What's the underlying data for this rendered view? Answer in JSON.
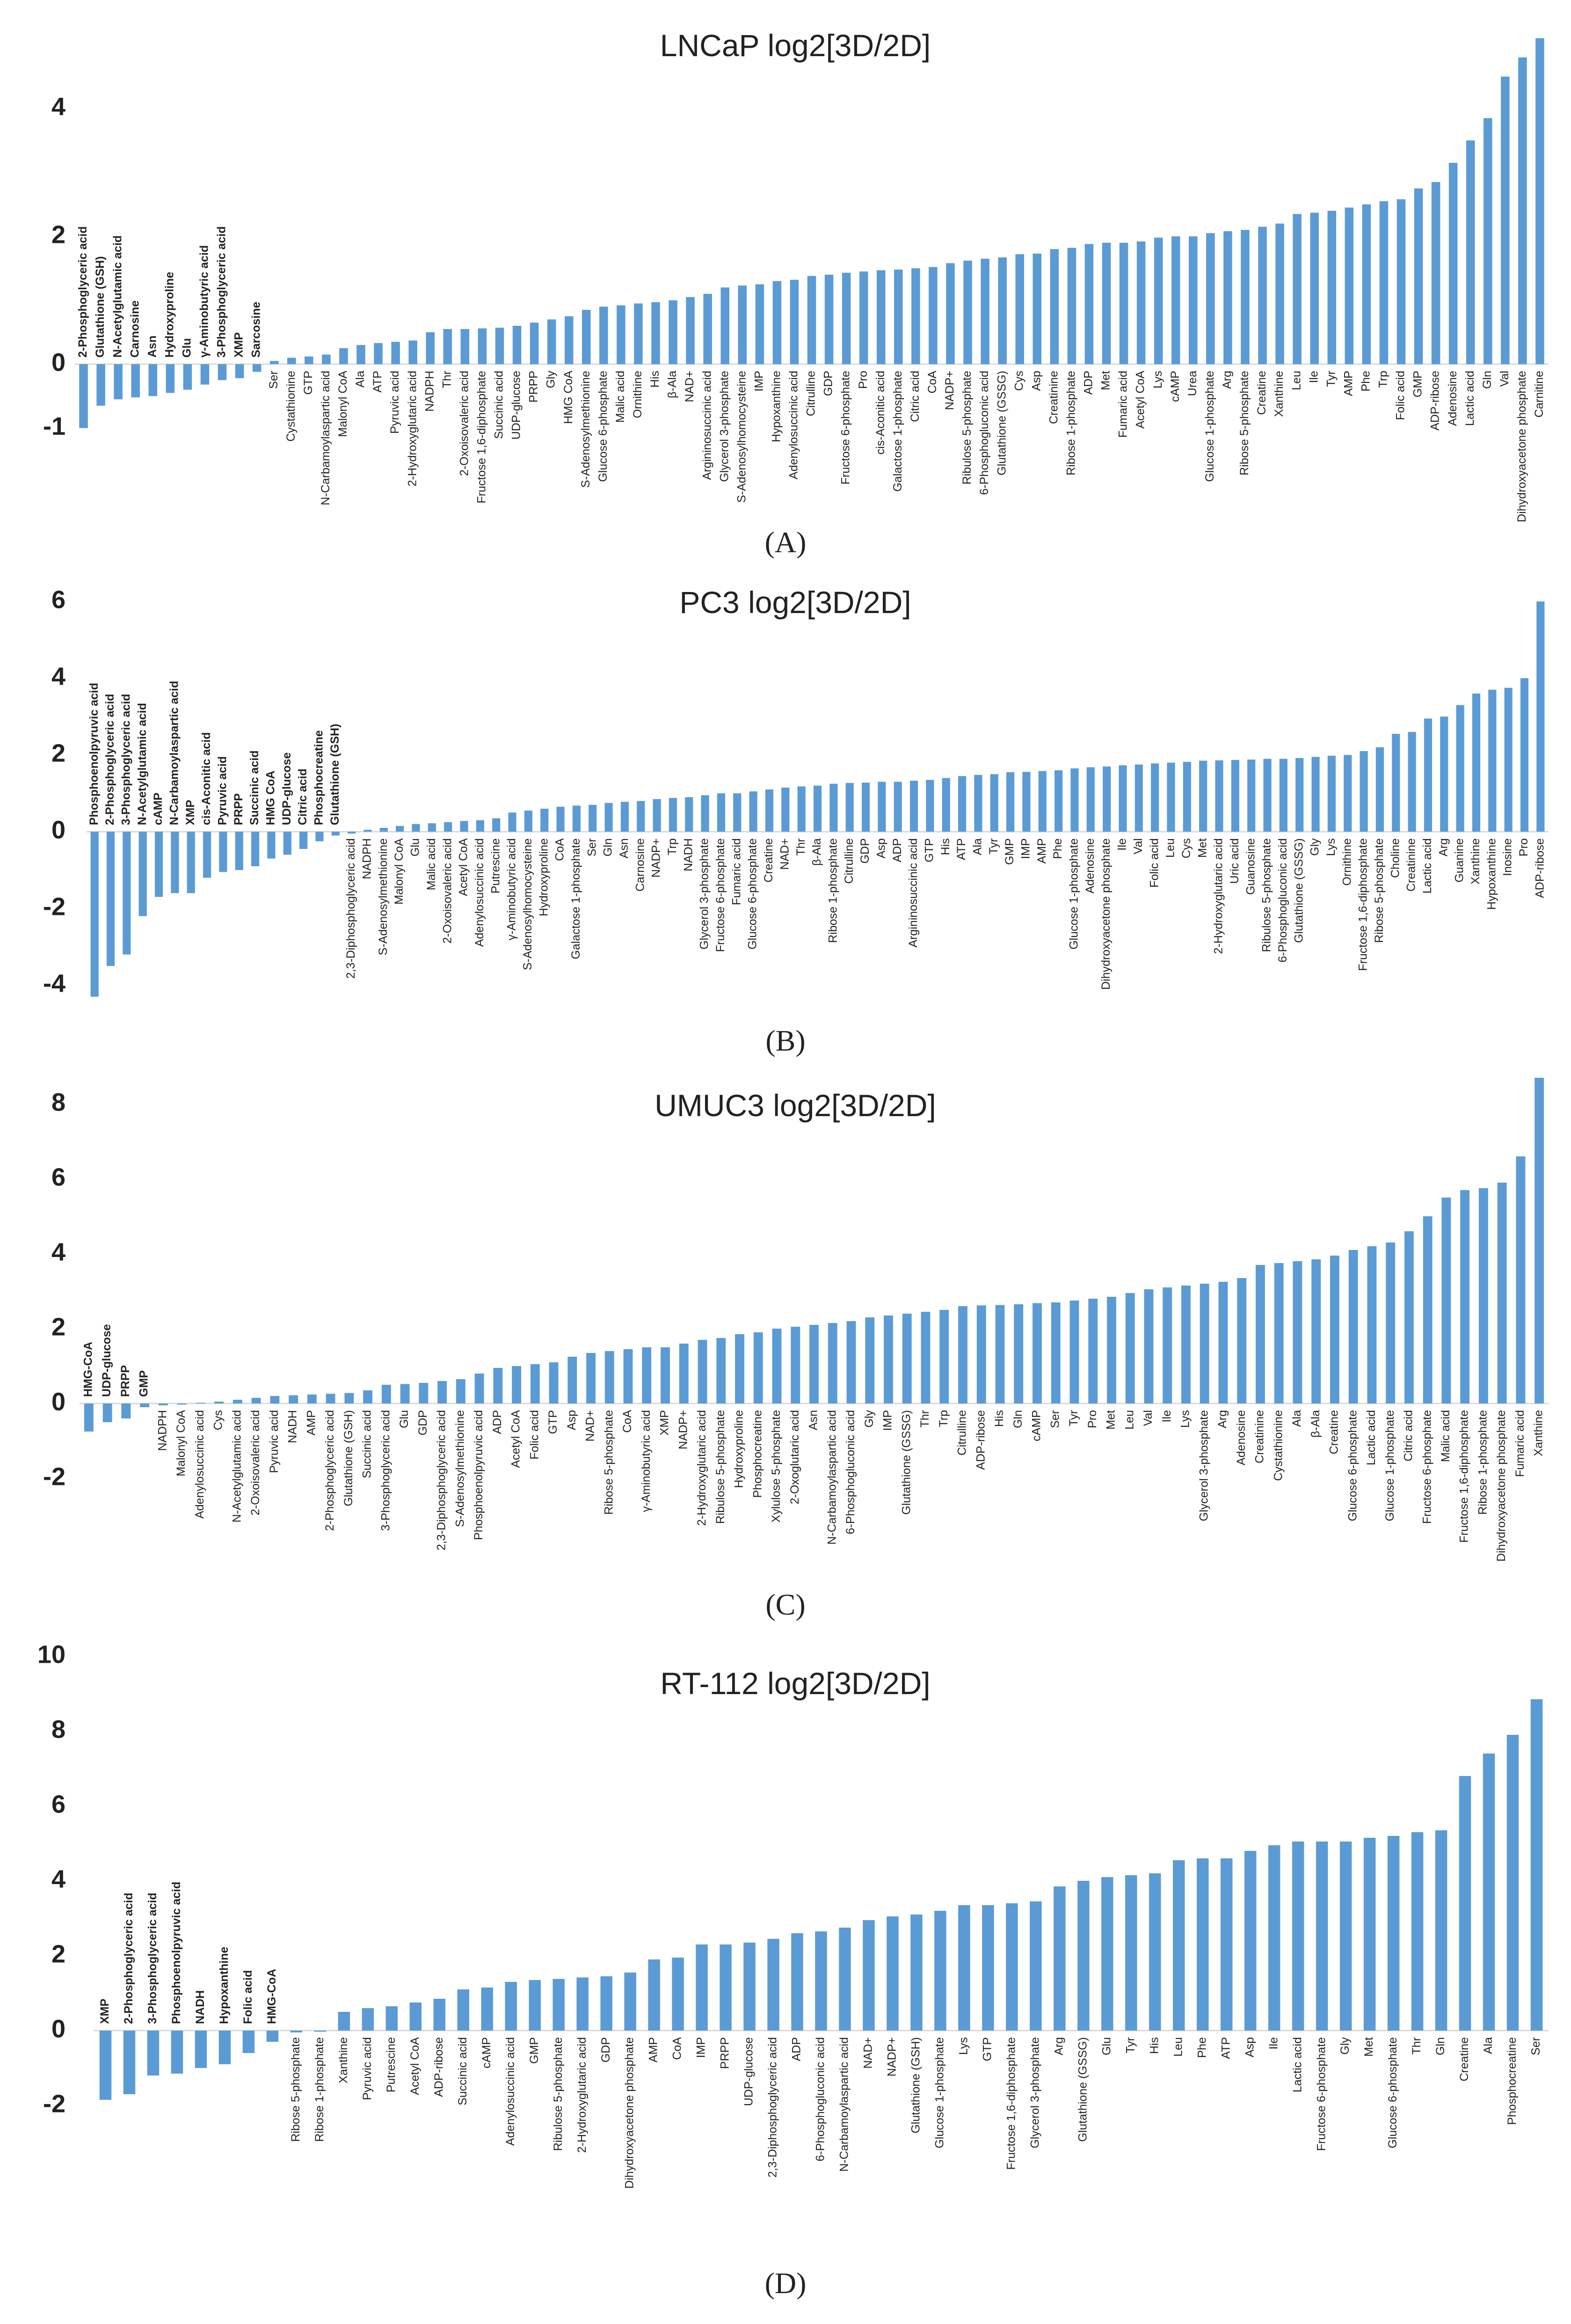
{
  "chart_data": [
    {
      "type": "bar",
      "title": "LNCaP log2[3D/2D]",
      "panel_label": "(A)",
      "color": "#5b9bd5",
      "ylim": [
        -1.2,
        5.2
      ],
      "yticks": [
        -1,
        0,
        2,
        4
      ],
      "categories": [
        "2-Phosphoglyceric acid",
        "Glutathione (GSH)",
        "N-Acetylglutamic acid",
        "Carnosine",
        "Asn",
        "Hydroxyproline",
        "Glu",
        "γ-Aminobutyric acid",
        "3-Phosphoglyceric acid",
        "XMP",
        "Sarcosine",
        "Ser",
        "Cystathionine",
        "GTP",
        "N-Carbamoylaspartic acid",
        "Malonyl CoA",
        "Ala",
        "ATP",
        "Pyruvic acid",
        "2-Hydroxyglutaric acid",
        "NADPH",
        "Thr",
        "2-Oxoisovaleric acid",
        "Fructose 1,6-diphosphate",
        "Succinic acid",
        "UDP-glucose",
        "PRPP",
        "Gly",
        "HMG CoA",
        "S-Adenosylmethionine",
        "Glucose 6-phosphate",
        "Malic acid",
        "Ornithine",
        "His",
        "β-Ala",
        "NAD+",
        "Argininosuccinic acid",
        "Glycerol 3-phosphate",
        "S-Adenosylhomocysteine",
        "IMP",
        "Hypoxanthine",
        "Adenylosuccinic acid",
        "Citrulline",
        "GDP",
        "Fructose 6-phosphate",
        "Pro",
        "cis-Aconitic acid",
        "Galactose 1-phosphate",
        "Citric acid",
        "CoA",
        "NADP+",
        "Ribulose 5-phosphate",
        "6-Phosphogluconic acid",
        "Glutathione (GSSG)",
        "Cys",
        "Asp",
        "Creatinine",
        "Ribose 1-phosphate",
        "ADP",
        "Met",
        "Fumaric acid",
        "Acetyl CoA",
        "Lys",
        "cAMP",
        "Urea",
        "Glucose 1-phosphate",
        "Arg",
        "Ribose 5-phosphate",
        "Creatine",
        "Xanthine",
        "Leu",
        "Ile",
        "Tyr",
        "AMP",
        "Phe",
        "Trp",
        "Folic acid",
        "GMP",
        "ADP-ribose",
        "Adenosine",
        "Lactic acid",
        "Gln",
        "Val",
        "Dihydroxyacetone phosphate",
        "Carnitine"
      ],
      "values": [
        -1.0,
        -0.65,
        -0.55,
        -0.52,
        -0.5,
        -0.45,
        -0.4,
        -0.32,
        -0.25,
        -0.22,
        -0.12,
        0.05,
        0.1,
        0.12,
        0.15,
        0.25,
        0.3,
        0.33,
        0.35,
        0.37,
        0.5,
        0.55,
        0.55,
        0.56,
        0.57,
        0.6,
        0.65,
        0.7,
        0.75,
        0.85,
        0.9,
        0.92,
        0.95,
        0.97,
        1.0,
        1.05,
        1.1,
        1.2,
        1.23,
        1.25,
        1.3,
        1.32,
        1.38,
        1.4,
        1.43,
        1.45,
        1.47,
        1.48,
        1.5,
        1.52,
        1.58,
        1.62,
        1.65,
        1.67,
        1.72,
        1.73,
        1.8,
        1.82,
        1.88,
        1.9,
        1.9,
        1.92,
        1.98,
        2.0,
        2.0,
        2.05,
        2.08,
        2.1,
        2.15,
        2.2,
        2.35,
        2.37,
        2.4,
        2.45,
        2.5,
        2.55,
        2.58,
        2.75,
        2.85,
        3.15,
        3.5,
        3.85,
        4.5,
        4.8,
        5.1
      ]
    },
    {
      "type": "bar",
      "title": "PC3 log2[3D/2D]",
      "panel_label": "(B)",
      "color": "#5b9bd5",
      "ylim": [
        -4.4,
        6.1
      ],
      "yticks": [
        -4,
        -2,
        0,
        2,
        4,
        6
      ],
      "categories": [
        "Phosphoenolpyruvic acid",
        "2-Phosphoglyceric acid",
        "3-Phosphoglyceric acid",
        "N-Acetylglutamic acid",
        "cAMP",
        "N-Carbamoylaspartic acid",
        "XMP",
        "cis-Aconitic acid",
        "Pyruvic acid",
        "PRPP",
        "Succinic acid",
        "HMG CoA",
        "UDP-glucose",
        "Citric acid",
        "Phosphocreatine",
        "Glutathione (GSH)",
        "2,3-Diphosphoglyceric acid",
        "NADPH",
        "S-Adenosylmethionine",
        "Malonyl CoA",
        "Glu",
        "Malic acid",
        "2-Oxoisovaleric acid",
        "Acetyl CoA",
        "Adenylosuccinic acid",
        "Putrescine",
        "γ-Aminobutyric acid",
        "S-Adenosylhomocysteine",
        "Hydroxyproline",
        "CoA",
        "Galactose 1-phosphate",
        "Ser",
        "Gln",
        "Asn",
        "Carnosine",
        "NADP+",
        "Trp",
        "NADH",
        "Glycerol 3-phosphate",
        "Fructose 6-phosphate",
        "Fumaric acid",
        "Glucose 6-phosphate",
        "Creatine",
        "NAD+",
        "Thr",
        "β-Ala",
        "Ribose 1-phosphate",
        "Citrulline",
        "GDP",
        "Asp",
        "ADP",
        "Argininosuccinic acid",
        "GTP",
        "His",
        "ATP",
        "Ala",
        "Tyr",
        "GMP",
        "IMP",
        "AMP",
        "Phe",
        "Glucose 1-phosphate",
        "Adenosine",
        "Dihydroxyacetone phosphate",
        "Ile",
        "Val",
        "Folic acid",
        "Leu",
        "Cys",
        "Met",
        "2-Hydroxyglutaric acid",
        "Uric acid",
        "Guanosine",
        "Ribulose 5-phosphate",
        "6-Phosphogluconic acid",
        "Glutathione (GSSG)",
        "Gly",
        "Lys",
        "Ornithine",
        "Fructose 1,6-diphosphate",
        "Ribose 5-phosphate",
        "Choline",
        "Creatinine",
        "Lactic acid",
        "Arg",
        "Guanine",
        "Xanthine",
        "Hypoxanthine",
        "Inosine",
        "Pro",
        "ADP-ribose"
      ],
      "values": [
        -4.3,
        -3.5,
        -3.2,
        -2.2,
        -1.7,
        -1.6,
        -1.6,
        -1.2,
        -1.05,
        -1.0,
        -0.9,
        -0.7,
        -0.6,
        -0.45,
        -0.25,
        -0.1,
        -0.05,
        0.05,
        0.1,
        0.15,
        0.2,
        0.22,
        0.25,
        0.28,
        0.3,
        0.35,
        0.5,
        0.55,
        0.6,
        0.65,
        0.68,
        0.7,
        0.75,
        0.78,
        0.8,
        0.85,
        0.88,
        0.9,
        0.95,
        1.0,
        1.0,
        1.05,
        1.1,
        1.15,
        1.18,
        1.2,
        1.25,
        1.27,
        1.28,
        1.3,
        1.3,
        1.33,
        1.35,
        1.4,
        1.45,
        1.48,
        1.5,
        1.55,
        1.56,
        1.58,
        1.6,
        1.65,
        1.68,
        1.7,
        1.73,
        1.75,
        1.78,
        1.8,
        1.82,
        1.85,
        1.86,
        1.87,
        1.88,
        1.9,
        1.9,
        1.92,
        1.95,
        1.98,
        2.0,
        2.1,
        2.2,
        2.55,
        2.6,
        2.95,
        3.0,
        3.3,
        3.6,
        3.7,
        3.75,
        4.0,
        6.0
      ]
    },
    {
      "type": "bar",
      "title": "UMUC3 log2[3D/2D]",
      "panel_label": "(C)",
      "color": "#5b9bd5",
      "ylim": [
        -2.5,
        8.8
      ],
      "yticks": [
        -2,
        0,
        2,
        4,
        6,
        8
      ],
      "categories": [
        "HMG-CoA",
        "UDP-glucose",
        "PRPP",
        "GMP",
        "NADPH",
        "Malonyl CoA",
        "Adenylosuccinic acid",
        "Cys",
        "N-Acetylglutamic acid",
        "2-Oxoisovaleric acid",
        "Pyruvic acid",
        "NADH",
        "AMP",
        "2-Phosphoglyceric acid",
        "Glutathione (GSH)",
        "Succinic acid",
        "3-Phosphoglyceric acid",
        "Glu",
        "GDP",
        "2,3-Diphosphoglyceric acid",
        "S-Adenosylmethionine",
        "Phosphoenolpyruvic acid",
        "ADP",
        "Acetyl CoA",
        "Folic acid",
        "GTP",
        "Asp",
        "NAD+",
        "Ribose 5-phosphate",
        "CoA",
        "γ-Aminobutyric acid",
        "XMP",
        "NADP+",
        "2-Hydroxyglutaric acid",
        "Ribulose 5-phosphate",
        "Hydroxyproline",
        "Phosphocreatine",
        "Xylulose 5-phosphate",
        "2-Oxoglutaric acid",
        "Asn",
        "N-Carbamoylaspartic acid",
        "6-Phosphogluconic acid",
        "Gly",
        "IMP",
        "Glutathione (GSSG)",
        "Thr",
        "Trp",
        "Citrulline",
        "ADP-ribose",
        "His",
        "Gln",
        "cAMP",
        "Ser",
        "Tyr",
        "Pro",
        "Met",
        "Leu",
        "Val",
        "Ile",
        "Lys",
        "Glycerol 3-phosphate",
        "Arg",
        "Adenosine",
        "Creatinine",
        "Cystathionine",
        "Ala",
        "β-Ala",
        "Creatine",
        "Glucose 6-phosphate",
        "Lactic acid",
        "Glucose 1-phosphate",
        "Citric acid",
        "Fructose 6-phosphate",
        "Malic acid",
        "Fructose 1,6-diphosphate",
        "Ribose 1-phosphate",
        "Dihydroxyacetone phosphate",
        "Fumaric acid",
        "Xanthine"
      ],
      "values": [
        -0.75,
        -0.5,
        -0.4,
        -0.1,
        -0.05,
        -0.03,
        0.02,
        0.05,
        0.1,
        0.15,
        0.2,
        0.22,
        0.24,
        0.26,
        0.28,
        0.35,
        0.5,
        0.52,
        0.55,
        0.6,
        0.65,
        0.8,
        0.95,
        1.0,
        1.05,
        1.1,
        1.25,
        1.35,
        1.4,
        1.45,
        1.5,
        1.5,
        1.6,
        1.7,
        1.75,
        1.85,
        1.9,
        2.0,
        2.05,
        2.1,
        2.15,
        2.2,
        2.3,
        2.35,
        2.4,
        2.45,
        2.5,
        2.6,
        2.62,
        2.63,
        2.65,
        2.68,
        2.7,
        2.75,
        2.8,
        2.85,
        2.95,
        3.05,
        3.1,
        3.15,
        3.2,
        3.25,
        3.35,
        3.7,
        3.75,
        3.8,
        3.85,
        3.95,
        4.1,
        4.2,
        4.3,
        4.6,
        5.0,
        5.5,
        5.7,
        5.75,
        5.9,
        6.6,
        8.7
      ]
    },
    {
      "type": "bar",
      "title": "RT-112 log2[3D/2D]",
      "panel_label": "(D)",
      "color": "#5b9bd5",
      "ylim": [
        -2.3,
        10
      ],
      "yticks": [
        -2,
        0,
        2,
        4,
        6,
        8,
        10
      ],
      "categories": [
        "XMP",
        "2-Phosphoglyceric acid",
        "3-Phosphoglyceric acid",
        "Phosphoenolpyruvic acid",
        "NADH",
        "Hypoxanthine",
        "Folic acid",
        "HMG-CoA",
        "Ribose 5-phosphate",
        "Ribose 1-phosphate",
        "Xanthine",
        "Pyruvic acid",
        "Putrescine",
        "Acetyl CoA",
        "ADP-ribose",
        "Succinic acid",
        "cAMP",
        "Adenylosuccinic acid",
        "GMP",
        "Ribulose 5-phosphate",
        "2-Hydroxyglutaric acid",
        "GDP",
        "Dihydroxyacetone phosphate",
        "AMP",
        "CoA",
        "IMP",
        "PRPP",
        "UDP-glucose",
        "2,3-Diphosphoglyceric acid",
        "ADP",
        "6-Phosphogluconic acid",
        "N-Carbamoylaspartic acid",
        "NAD+",
        "NADP+",
        "Glutathione (GSH)",
        "Glucose 1-phosphate",
        "Lys",
        "GTP",
        "Fructose 1,6-diphosphate",
        "Glycerol 3-phosphate",
        "Arg",
        "Glutathione (GSSG)",
        "Glu",
        "Tyr",
        "His",
        "Leu",
        "Phe",
        "ATP",
        "Asp",
        "Ile",
        "Lactic acid",
        "Fructose 6-phosphate",
        "Gly",
        "Met",
        "Glucose 6-phosphate",
        "Thr",
        "Gln",
        "Creatine",
        "Ala",
        "Phosphocreatine",
        "Ser"
      ],
      "values": [
        -1.85,
        -1.7,
        -1.2,
        -1.15,
        -1.0,
        -0.9,
        -0.6,
        -0.3,
        -0.05,
        -0.03,
        0.5,
        0.6,
        0.65,
        0.75,
        0.85,
        1.1,
        1.15,
        1.3,
        1.35,
        1.38,
        1.42,
        1.45,
        1.55,
        1.9,
        1.95,
        2.3,
        2.3,
        2.35,
        2.45,
        2.6,
        2.65,
        2.75,
        2.95,
        3.05,
        3.1,
        3.2,
        3.35,
        3.35,
        3.4,
        3.45,
        3.85,
        4.0,
        4.1,
        4.15,
        4.2,
        4.55,
        4.6,
        4.6,
        4.8,
        4.95,
        5.05,
        5.05,
        5.05,
        5.15,
        5.2,
        5.3,
        5.35,
        6.8,
        7.4,
        7.9,
        8.85
      ]
    }
  ]
}
